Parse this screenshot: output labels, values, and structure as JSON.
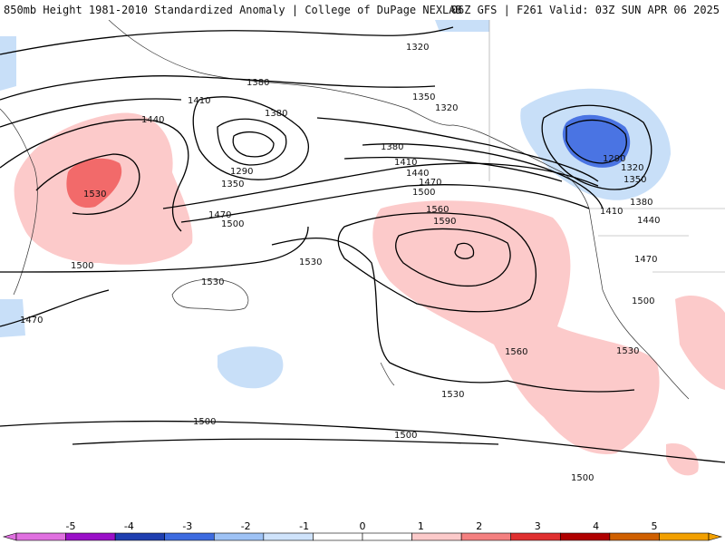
{
  "header": {
    "left": "850mb Height 1981-2010 Standardized Anomaly | College of DuPage NEXLAB",
    "right": "06Z GFS | F261 Valid: 03Z SUN APR 06 2025"
  },
  "contour_labels": {
    "c1320a": "1320",
    "c1380a": "1380",
    "c1410a": "1410",
    "c1440a": "1440",
    "c1530a": "1530",
    "c1470a": "1470",
    "c1500a": "1500",
    "c1380b": "1380",
    "c1290a": "1290",
    "c1350a": "1350",
    "c1350b": "1350",
    "c1320b": "1320",
    "c1380c": "1380",
    "c1410b": "1410",
    "c1440b": "1440",
    "c1470b": "1470",
    "c1500b": "1500",
    "c1560a": "1560",
    "c1590a": "1590",
    "c1530b": "1530",
    "c1530c": "1530",
    "c1500c": "1500",
    "c1470c": "1470",
    "c1290b": "1290",
    "c1320c": "1320",
    "c1350c": "1350",
    "c1380d": "1380",
    "c1410c": "1410",
    "c1440c": "1440",
    "c1470d": "1470",
    "c1500d": "1500",
    "c1560b": "1560",
    "c1530d": "1530",
    "c1530e": "1530",
    "c1500e": "1500",
    "c1500f": "1500",
    "c1500g": "1500"
  },
  "colorbar": {
    "ticks": [
      "-5",
      "-4",
      "-3",
      "-2",
      "-1",
      "0",
      "1",
      "2",
      "3",
      "4",
      "5"
    ],
    "colors": [
      "#e070e0",
      "#9a10c8",
      "#1f3fb0",
      "#3d6be0",
      "#9ec2f5",
      "#cfe3fb",
      "#ffffff",
      "#ffffff",
      "#fccaca",
      "#f48080",
      "#e03030",
      "#b00000",
      "#d06000",
      "#f2a000"
    ]
  }
}
